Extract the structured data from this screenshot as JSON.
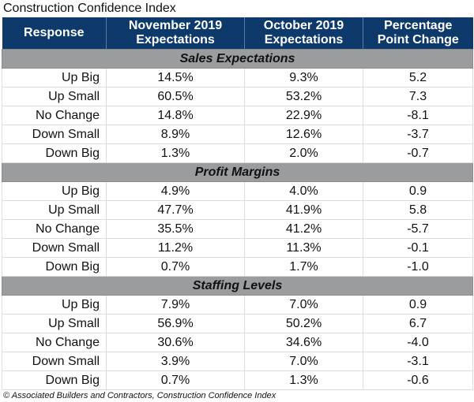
{
  "title": "Construction Confidence Index",
  "footer": "© Associated Builders and Contractors, Construction Confidence Index",
  "colors": {
    "header_bg": "#0d3a6b",
    "section_bg": "#9b9c9e"
  },
  "chart_data": {
    "type": "table",
    "title": "Construction Confidence Index",
    "columns": [
      [
        "Response"
      ],
      [
        "November 2019",
        "Expectations"
      ],
      [
        "October 2019",
        "Expectations"
      ],
      [
        "Percentage",
        "Point Change"
      ]
    ],
    "sections": [
      {
        "name": "Sales Expectations",
        "rows": [
          [
            "Up Big",
            "14.5%",
            "9.3%",
            "5.2"
          ],
          [
            "Up Small",
            "60.5%",
            "53.2%",
            "7.3"
          ],
          [
            "No Change",
            "14.8%",
            "22.9%",
            "-8.1"
          ],
          [
            "Down Small",
            "8.9%",
            "12.6%",
            "-3.7"
          ],
          [
            "Down Big",
            "1.3%",
            "2.0%",
            "-0.7"
          ]
        ]
      },
      {
        "name": "Profit Margins",
        "rows": [
          [
            "Up Big",
            "4.9%",
            "4.0%",
            "0.9"
          ],
          [
            "Up Small",
            "47.7%",
            "41.9%",
            "5.8"
          ],
          [
            "No Change",
            "35.5%",
            "41.2%",
            "-5.7"
          ],
          [
            "Down Small",
            "11.2%",
            "11.3%",
            "-0.1"
          ],
          [
            "Down Big",
            "0.7%",
            "1.7%",
            "-1.0"
          ]
        ]
      },
      {
        "name": "Staffing Levels",
        "rows": [
          [
            "Up Big",
            "7.9%",
            "7.0%",
            "0.9"
          ],
          [
            "Up Small",
            "56.9%",
            "50.2%",
            "6.7"
          ],
          [
            "No Change",
            "30.6%",
            "34.6%",
            "-4.0"
          ],
          [
            "Down Small",
            "3.9%",
            "7.0%",
            "-3.1"
          ],
          [
            "Down Big",
            "0.7%",
            "1.3%",
            "-0.6"
          ]
        ]
      }
    ]
  }
}
